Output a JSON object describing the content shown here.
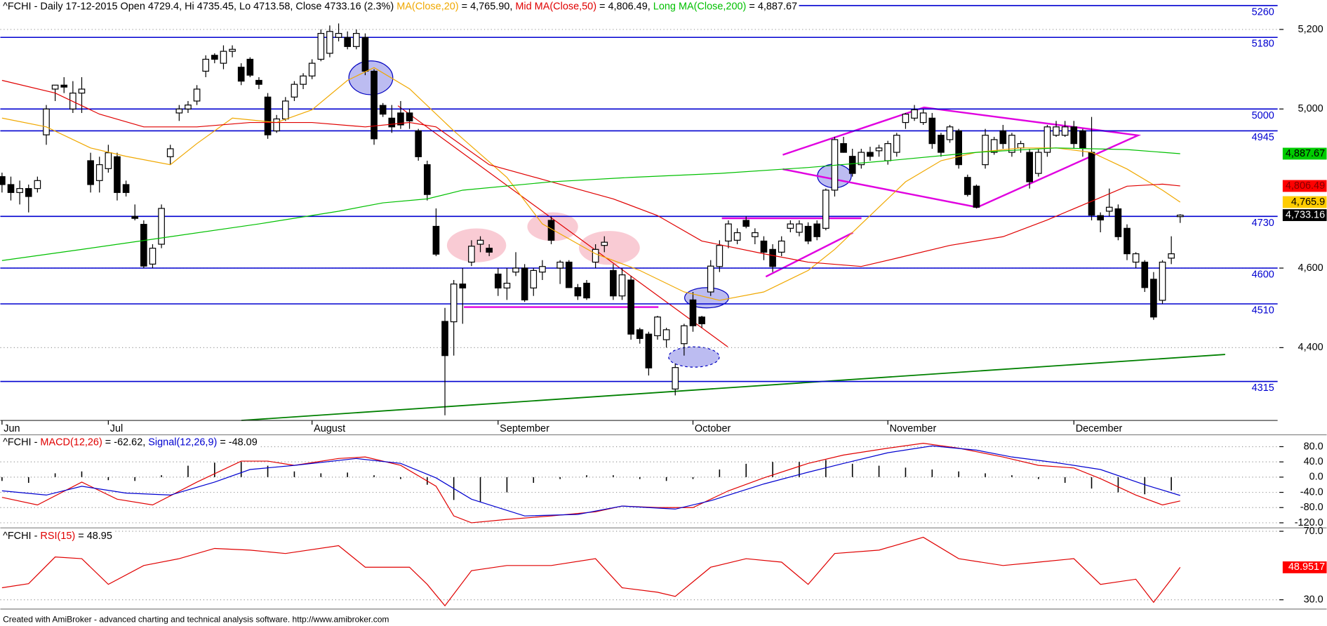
{
  "chart_data": [
    {
      "type": "candlestick",
      "title": [
        {
          "text": "^FCHI - Daily 17-12-2015 Open 4729.4, Hi 4735.45, Lo 4713.58, Close 4733.16 (2.3%) ",
          "color": "#000000"
        },
        {
          "text": "MA(Close,20)",
          "color": "#f0a800"
        },
        {
          "text": " = 4,765.90, ",
          "color": "#000000"
        },
        {
          "text": "Mid MA(Close,50)",
          "color": "#e00000"
        },
        {
          "text": " = 4,806.49, ",
          "color": "#000000"
        },
        {
          "text": "Long MA(Close,200)",
          "color": "#00c000"
        },
        {
          "text": " = 4,887.67",
          "color": "#000000"
        }
      ],
      "xlim": [
        0,
        144
      ],
      "xticks": [
        {
          "value": 0,
          "label": "Jun"
        },
        {
          "value": 12,
          "label": "Jul"
        },
        {
          "value": 35,
          "label": "August"
        },
        {
          "value": 56,
          "label": "September"
        },
        {
          "value": 78,
          "label": "October"
        },
        {
          "value": 100,
          "label": "November"
        },
        {
          "value": 121,
          "label": "December"
        }
      ],
      "ylim": [
        4217,
        5274
      ],
      "yticks": [
        {
          "value": 5200,
          "label": "5,200"
        },
        {
          "value": 5000,
          "label": "5,000"
        },
        {
          "value": 4600,
          "label": "4,600"
        },
        {
          "value": 4400,
          "label": "4,400"
        }
      ],
      "grid": true,
      "levels": [
        5260,
        5180,
        5000,
        4945,
        4730,
        4600,
        4510,
        4315
      ],
      "level_color": "#0000d0",
      "open": [
        4830,
        4810,
        4790,
        4800,
        4800,
        4935,
        5050,
        5060,
        5000,
        5040,
        4870,
        4820,
        4850,
        4880,
        4810,
        4730,
        4710,
        4610,
        4660,
        4880,
        4990,
        5000,
        5020,
        5095,
        5135,
        5115,
        5145,
        5105,
        5125,
        5072,
        5030,
        4945,
        4975,
        5030,
        5062,
        5083,
        5125,
        5140,
        5180,
        5180,
        5157,
        5180,
        5095,
        5009,
        4977,
        4990,
        4990,
        4945,
        4860,
        4705,
        4466,
        4465,
        4560,
        4615,
        4660,
        4650,
        4585,
        4550,
        4590,
        4600,
        4550,
        4590,
        4720,
        4600,
        4615,
        4551,
        4562,
        4615,
        4657,
        4594,
        4530,
        4570,
        4445,
        4434,
        4430,
        4420,
        4296,
        4410,
        4520,
        4477,
        4540,
        4604,
        4668,
        4670,
        4720,
        4679,
        4668,
        4647,
        4640,
        4700,
        4690,
        4705,
        4711,
        4700,
        4796,
        4913,
        4881,
        4860,
        4891,
        4895,
        4870,
        4891,
        4966,
        4977,
        4966,
        4977,
        4934,
        4923,
        4945,
        4828,
        4806,
        4860,
        4891,
        4945,
        4891,
        4902,
        4891,
        4838,
        4891,
        4934,
        4934,
        4955,
        4945,
        4891,
        4732,
        4743,
        4749,
        4700,
        4615,
        4615,
        4572,
        4519,
        4625,
        4729.4
      ],
      "high": [
        4840,
        4830,
        4820,
        4810,
        4830,
        5010,
        5060,
        5080,
        5070,
        5080,
        4890,
        4880,
        4910,
        4890,
        4820,
        4760,
        4720,
        4660,
        4760,
        4910,
        5010,
        5020,
        5060,
        5135,
        5140,
        5160,
        5160,
        5115,
        5130,
        5080,
        5040,
        4985,
        5030,
        5070,
        5090,
        5125,
        5200,
        5210,
        5215,
        5195,
        5200,
        5190,
        5100,
        5015,
        5010,
        5020,
        5000,
        4950,
        4870,
        4750,
        4500,
        4570,
        4600,
        4670,
        4680,
        4660,
        4600,
        4600,
        4640,
        4610,
        4600,
        4620,
        4730,
        4620,
        4620,
        4560,
        4570,
        4660,
        4680,
        4610,
        4600,
        4580,
        4450,
        4440,
        4480,
        4450,
        4360,
        4460,
        4540,
        4480,
        4620,
        4670,
        4720,
        4700,
        4730,
        4700,
        4680,
        4660,
        4680,
        4720,
        4720,
        4715,
        4720,
        4800,
        4930,
        4930,
        4900,
        4900,
        4905,
        4910,
        4920,
        4940,
        4990,
        5010,
        5000,
        4990,
        4940,
        4960,
        4950,
        4835,
        4810,
        4950,
        4930,
        4960,
        4940,
        4920,
        4900,
        4900,
        4960,
        4970,
        4970,
        4970,
        4950,
        4980,
        4740,
        4800,
        4760,
        4710,
        4640,
        4620,
        4590,
        4620,
        4680,
        4735.45
      ],
      "low": [
        4790,
        4770,
        4760,
        4740,
        4790,
        4910,
        5020,
        5040,
        4990,
        4990,
        4790,
        4790,
        4840,
        4770,
        4780,
        4720,
        4600,
        4600,
        4650,
        4860,
        4970,
        4990,
        5010,
        5080,
        5115,
        5100,
        5130,
        5060,
        5080,
        5050,
        4925,
        4940,
        4970,
        5020,
        5050,
        5075,
        5120,
        5130,
        5170,
        5150,
        5150,
        5085,
        4910,
        4980,
        4940,
        4950,
        4950,
        4870,
        4770,
        4630,
        4230,
        4380,
        4460,
        4605,
        4640,
        4630,
        4530,
        4520,
        4580,
        4515,
        4530,
        4570,
        4660,
        4560,
        4550,
        4520,
        4520,
        4600,
        4640,
        4520,
        4520,
        4420,
        4410,
        4330,
        4420,
        4400,
        4280,
        4380,
        4440,
        4450,
        4530,
        4590,
        4650,
        4660,
        4700,
        4660,
        4620,
        4590,
        4630,
        4690,
        4680,
        4660,
        4670,
        4695,
        4780,
        4890,
        4830,
        4850,
        4870,
        4880,
        4860,
        4880,
        4950,
        4970,
        4960,
        4900,
        4880,
        4915,
        4850,
        4780,
        4750,
        4850,
        4885,
        4900,
        4880,
        4890,
        4800,
        4830,
        4880,
        4930,
        4930,
        4900,
        4880,
        4720,
        4690,
        4730,
        4670,
        4620,
        4600,
        4540,
        4470,
        4510,
        4610,
        4713.58
      ],
      "close": [
        4810,
        4790,
        4800,
        4780,
        4820,
        5000,
        5060,
        5055,
        5040,
        5050,
        4810,
        4860,
        4890,
        4790,
        4790,
        4725,
        4605,
        4650,
        4750,
        4900,
        5000,
        5010,
        5050,
        5125,
        5125,
        5145,
        5150,
        5070,
        5085,
        5062,
        4935,
        4975,
        5020,
        5062,
        5083,
        5115,
        5190,
        5195,
        5190,
        5157,
        5190,
        5095,
        4925,
        4987,
        4955,
        4960,
        4970,
        4880,
        4785,
        4635,
        4380,
        4560,
        4550,
        4655,
        4670,
        4640,
        4550,
        4562,
        4600,
        4520,
        4594,
        4604,
        4670,
        4615,
        4551,
        4530,
        4525,
        4647,
        4665,
        4530,
        4583,
        4434,
        4423,
        4349,
        4477,
        4445,
        4350,
        4455,
        4455,
        4460,
        4605,
        4657,
        4711,
        4689,
        4705,
        4689,
        4640,
        4604,
        4668,
        4711,
        4711,
        4668,
        4679,
        4796,
        4923,
        4891,
        4838,
        4891,
        4881,
        4902,
        4913,
        4934,
        4987,
        4998,
        4990,
        4913,
        4891,
        4955,
        4860,
        4785,
        4753,
        4934,
        4923,
        4913,
        4934,
        4913,
        4817,
        4891,
        4955,
        4955,
        4955,
        4913,
        4902,
        4733,
        4721,
        4753,
        4679,
        4636,
        4636,
        4551,
        4477,
        4615,
        4636,
        4733.16
      ],
      "close_badge": {
        "label": "4,733.16",
        "color": "#000000",
        "text_color": "#ffffff"
      },
      "series": [
        {
          "color": "#f0a800",
          "x": [
            0,
            5,
            10,
            14,
            19,
            22,
            26,
            31,
            35,
            39,
            42,
            46,
            51,
            57,
            61,
            67,
            72,
            77,
            81,
            86,
            91,
            94,
            98,
            102,
            106,
            110,
            115,
            119,
            123,
            127,
            131,
            133
          ],
          "values": [
            4977,
            4955,
            4902,
            4881,
            4860,
            4913,
            4977,
            4966,
            4998,
            5072,
            5104,
            5051,
            4945,
            4828,
            4711,
            4636,
            4594,
            4540,
            4519,
            4540,
            4594,
            4647,
            4732,
            4817,
            4870,
            4891,
            4902,
            4902,
            4891,
            4849,
            4796,
            4765.9
          ],
          "badge": {
            "label": "4,765.9",
            "color": "#ffcc00",
            "text_color": "#000000"
          }
        },
        {
          "color": "#e00000",
          "x": [
            0,
            6,
            11,
            16,
            22,
            28,
            35,
            41,
            46,
            49,
            55,
            62,
            69,
            74,
            79,
            86,
            91,
            97,
            101,
            107,
            113,
            118,
            123,
            127,
            131,
            133
          ],
          "values": [
            5072,
            5040,
            4987,
            4955,
            4955,
            4966,
            4966,
            4955,
            4966,
            4955,
            4860,
            4817,
            4774,
            4732,
            4668,
            4636,
            4615,
            4604,
            4625,
            4657,
            4679,
            4721,
            4768,
            4806,
            4811,
            4806.49
          ],
          "badge": {
            "label": "4,806.49",
            "color": "#ff0000",
            "text_color": "#800000"
          }
        },
        {
          "color": "#00c000",
          "x": [
            0,
            9,
            19,
            29,
            38,
            43,
            48,
            52,
            62,
            71,
            81,
            91,
            100,
            110,
            119,
            127,
            133
          ],
          "values": [
            4619,
            4647,
            4679,
            4711,
            4743,
            4764,
            4774,
            4796,
            4817,
            4828,
            4838,
            4853,
            4870,
            4891,
            4902,
            4898,
            4887.67
          ],
          "badge": {
            "label": "4,887.67",
            "color": "#00cc00",
            "text_color": "#000000"
          }
        }
      ]
    },
    {
      "type": "line",
      "title": [
        {
          "text": "^FCHI - ",
          "color": "#000000"
        },
        {
          "text": "MACD(12,26)",
          "color": "#e00000"
        },
        {
          "text": " = -62.62, ",
          "color": "#000000"
        },
        {
          "text": "Signal(12,26,9)",
          "color": "#0000d0"
        },
        {
          "text": " = -48.09",
          "color": "#000000"
        }
      ],
      "ylim": [
        -133.3,
        108.9
      ],
      "yticks": [
        {
          "value": 80,
          "label": "80.0"
        },
        {
          "value": 40,
          "label": "40.0"
        },
        {
          "value": 0,
          "label": "0.0"
        },
        {
          "value": -40,
          "label": "-40.0"
        },
        {
          "value": -80,
          "label": "-80.0"
        },
        {
          "value": -120,
          "label": "-120.0"
        }
      ],
      "grid": true,
      "histogram": {
        "color": "#000000",
        "x": [
          0,
          3,
          6,
          9,
          12,
          15,
          18,
          21,
          24,
          27,
          30,
          33,
          36,
          39,
          42,
          45,
          48,
          51,
          54,
          57,
          60,
          63,
          66,
          69,
          72,
          75,
          78,
          81,
          84,
          87,
          90,
          93,
          96,
          99,
          102,
          105,
          108,
          111,
          114,
          117,
          120,
          123,
          126,
          129,
          132
        ],
        "values": [
          -10,
          -15,
          10,
          15,
          -8,
          -10,
          5,
          30,
          38,
          40,
          30,
          15,
          10,
          12,
          5,
          -5,
          -20,
          -60,
          -65,
          -40,
          -15,
          -5,
          5,
          5,
          -5,
          -10,
          -5,
          20,
          35,
          40,
          40,
          45,
          35,
          30,
          25,
          20,
          15,
          10,
          5,
          -5,
          -15,
          -30,
          -40,
          -45,
          -35
        ]
      },
      "series": [
        {
          "color": "#e00000",
          "x": [
            0,
            4,
            9,
            13,
            17,
            22,
            27,
            30,
            33,
            38,
            41,
            45,
            49,
            51,
            53,
            57,
            62,
            67,
            70,
            74,
            78,
            82,
            86,
            91,
            95,
            100,
            104,
            108,
            113,
            117,
            121,
            124,
            128,
            131,
            133
          ],
          "values": [
            -53,
            -73,
            -13,
            -58,
            -73,
            -13,
            42,
            42,
            31,
            49,
            53,
            31,
            -24,
            -102,
            -120,
            -111,
            -102,
            -91,
            -76,
            -80,
            -80,
            -36,
            -2,
            36,
            58,
            76,
            89,
            76,
            53,
            31,
            24,
            -4,
            -47,
            -73,
            -62.62
          ]
        },
        {
          "color": "#0000d0",
          "x": [
            0,
            5,
            9,
            14,
            19,
            24,
            28,
            33,
            40,
            45,
            49,
            53,
            59,
            65,
            70,
            76,
            80,
            86,
            91,
            95,
            100,
            105,
            110,
            114,
            119,
            124,
            129,
            133
          ],
          "values": [
            -36,
            -47,
            -24,
            -42,
            -47,
            -13,
            20,
            31,
            49,
            36,
            -2,
            -58,
            -102,
            -98,
            -76,
            -84,
            -62,
            -18,
            13,
            36,
            64,
            82,
            71,
            53,
            38,
            20,
            -20,
            -48.09
          ]
        }
      ]
    },
    {
      "type": "line",
      "title": [
        {
          "text": "^FCHI - ",
          "color": "#000000"
        },
        {
          "text": "RSI(15)",
          "color": "#e00000"
        },
        {
          "text": " = 48.95",
          "color": "#000000"
        }
      ],
      "ylim": [
        25.56,
        71
      ],
      "yticks": [
        {
          "value": 70,
          "label": "70.0"
        },
        {
          "value": 30,
          "label": "30.0"
        }
      ],
      "grid": true,
      "series": [
        {
          "color": "#e00000",
          "x": [
            0,
            3,
            6,
            9,
            12,
            16,
            20,
            24,
            28,
            32,
            38,
            41,
            46,
            48,
            50,
            53,
            57,
            62,
            67,
            70,
            74,
            76,
            80,
            84,
            88,
            91,
            94,
            99,
            104,
            108,
            113,
            117,
            121,
            124,
            128,
            130,
            132,
            133
          ],
          "values": [
            37,
            39.4,
            55,
            54,
            39,
            50,
            54,
            60,
            59,
            57,
            61.6,
            49,
            49,
            39,
            26.5,
            47,
            50,
            50,
            54,
            37,
            34.4,
            32,
            49,
            54,
            52,
            39,
            57,
            59,
            66.5,
            54,
            50,
            52,
            54,
            39,
            42,
            28.5,
            42,
            48.9517
          ],
          "badge": {
            "label": "48.9517",
            "color": "#ff0000",
            "text_color": "#ffffff"
          }
        }
      ]
    }
  ],
  "footer": "Created with AmiBroker - advanced charting and technical analysis software. http://www.amibroker.com"
}
